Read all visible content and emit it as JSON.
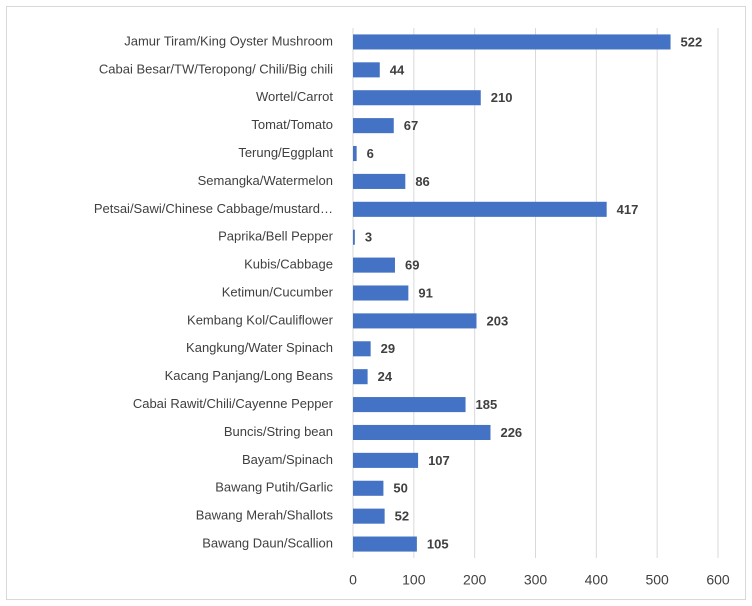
{
  "chart_data": {
    "type": "bar",
    "orientation": "horizontal",
    "categories": [
      "Jamur Tiram/King Oyster Mushroom",
      "Cabai Besar/TW/Teropong/ Chili/Big chili",
      "Wortel/Carrot",
      "Tomat/Tomato",
      "Terung/Eggplant",
      "Semangka/Watermelon",
      "Petsai/Sawi/Chinese Cabbage/mustard…",
      "Paprika/Bell Pepper",
      "Kubis/Cabbage",
      "Ketimun/Cucumber",
      "Kembang Kol/Cauliflower",
      "Kangkung/Water Spinach",
      "Kacang Panjang/Long Beans",
      "Cabai Rawit/Chili/Cayenne Pepper",
      "Buncis/String bean",
      "Bayam/Spinach",
      "Bawang Putih/Garlic",
      "Bawang Merah/Shallots",
      "Bawang Daun/Scallion"
    ],
    "values": [
      522,
      44,
      210,
      67,
      6,
      86,
      417,
      3,
      69,
      91,
      203,
      29,
      24,
      185,
      226,
      107,
      50,
      52,
      105
    ],
    "color": "#4472c4",
    "xlim": [
      0,
      600
    ],
    "xticks": [
      0,
      100,
      200,
      300,
      400,
      500,
      600
    ],
    "grid": true
  }
}
